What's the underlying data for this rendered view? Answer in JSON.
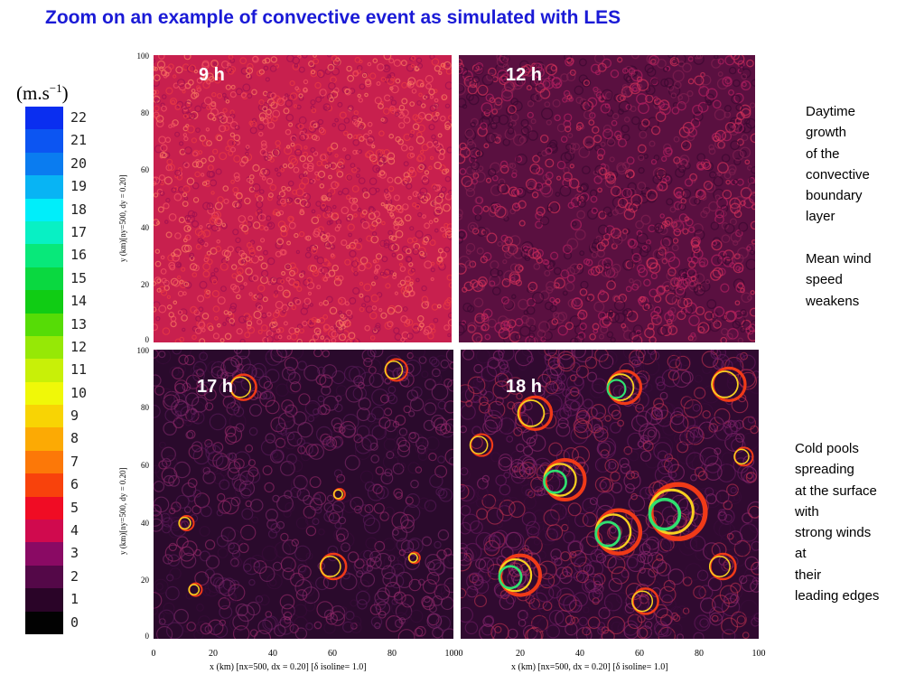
{
  "title": "Zoom on an example of convective event as simulated with LES",
  "colorbar": {
    "unit_base": "(m.s",
    "unit_exp": "−1",
    "unit_close": ")",
    "levels": [
      {
        "label": "22",
        "color": "#0a2ef0"
      },
      {
        "label": "21",
        "color": "#0c55f2"
      },
      {
        "label": "20",
        "color": "#0a7cf0"
      },
      {
        "label": "19",
        "color": "#08b4f4"
      },
      {
        "label": "18",
        "color": "#00eefa"
      },
      {
        "label": "17",
        "color": "#08f0c4"
      },
      {
        "label": "16",
        "color": "#08e87a"
      },
      {
        "label": "15",
        "color": "#0ad840"
      },
      {
        "label": "14",
        "color": "#10cc14"
      },
      {
        "label": "13",
        "color": "#56dc06"
      },
      {
        "label": "12",
        "color": "#96e806"
      },
      {
        "label": "11",
        "color": "#c8f008"
      },
      {
        "label": "10",
        "color": "#f0f808"
      },
      {
        "label": "9",
        "color": "#f8d404"
      },
      {
        "label": "8",
        "color": "#fcaa04"
      },
      {
        "label": "7",
        "color": "#fc7808"
      },
      {
        "label": "6",
        "color": "#f8420c"
      },
      {
        "label": "5",
        "color": "#f00c24"
      },
      {
        "label": "4",
        "color": "#d00a4e"
      },
      {
        "label": "3",
        "color": "#8a0a64"
      },
      {
        "label": "2",
        "color": "#540848"
      },
      {
        "label": "1",
        "color": "#2a0428"
      },
      {
        "label": "0",
        "color": "#020202"
      }
    ]
  },
  "panels": [
    {
      "label": "9 h",
      "bg": "#c8204e"
    },
    {
      "label": "12 h",
      "bg": "#5a1040"
    },
    {
      "label": "17 h",
      "bg": "#2a0a2c"
    },
    {
      "label": "18 h",
      "bg": "#300a30"
    }
  ],
  "axes": {
    "y_ticks": [
      "100",
      "80",
      "60",
      "40",
      "20",
      "0"
    ],
    "x_ticks": [
      "0",
      "20",
      "40",
      "60",
      "80",
      "100"
    ],
    "y_label": "y (km)[ny=500, dy =   0.20]",
    "x_label": "x (km)  [nx=500, dx =   0.20]  [δ isoline= 1.0]"
  },
  "notes": {
    "top": "Daytime\ngrowth\nof the\nconvective\nboundary\nlayer\n\nMean wind\nspeed\nweakens",
    "bottom": "Cold pools\nspreading\nat the surface\nwith\nstrong winds\nat\ntheir\nleading edges"
  }
}
